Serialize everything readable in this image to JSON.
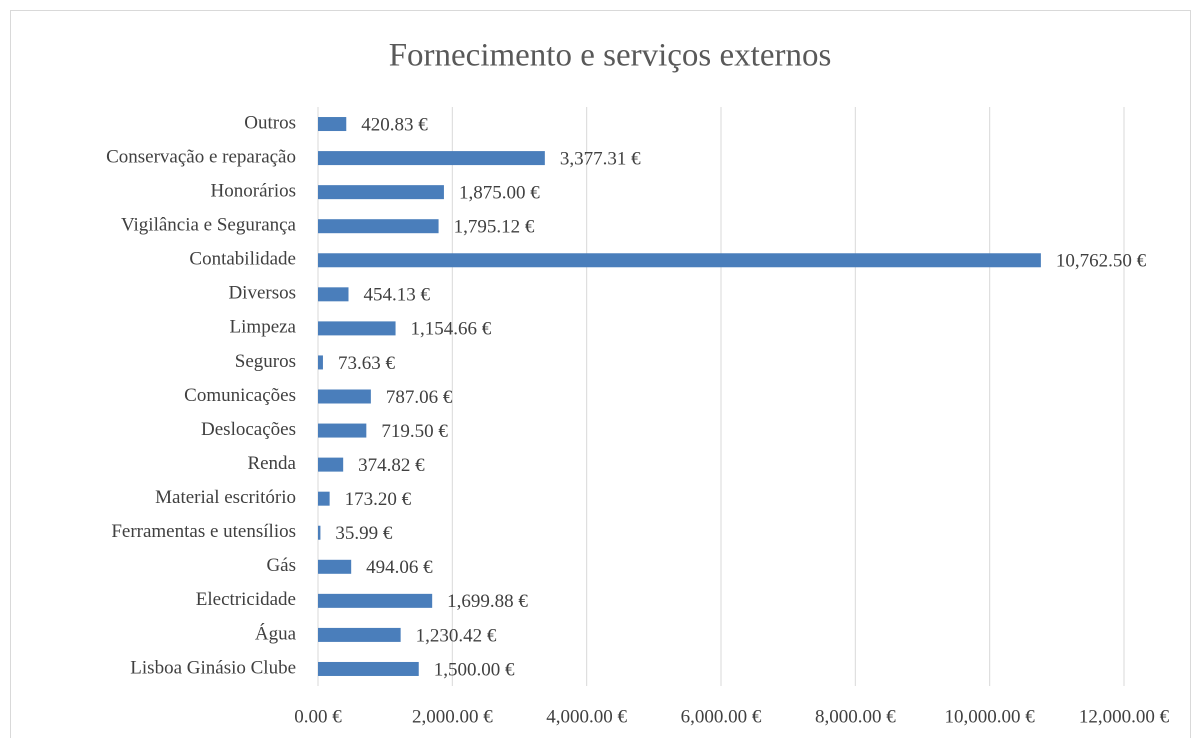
{
  "chart_data": {
    "type": "bar",
    "orientation": "horizontal",
    "title": "Fornecimento e serviços externos",
    "categories": [
      "Outros",
      "Conservação e reparação",
      "Honorários",
      "Vigilância e Segurança",
      "Contabilidade",
      "Diversos",
      "Limpeza",
      "Seguros",
      "Comunicações",
      "Deslocações",
      "Renda",
      "Material escritório",
      "Ferramentas e utensílios",
      "Gás",
      "Electricidade",
      "Água",
      "Lisboa Ginásio Clube"
    ],
    "values": [
      420.83,
      3377.31,
      1875.0,
      1795.12,
      10762.5,
      454.13,
      1154.66,
      73.63,
      787.06,
      719.5,
      374.82,
      173.2,
      35.99,
      494.06,
      1699.88,
      1230.42,
      1500.0
    ],
    "value_labels": [
      "420.83 €",
      "3,377.31 €",
      "1,875.00 €",
      "1,795.12 €",
      "10,762.50 €",
      "454.13 €",
      "1,154.66 €",
      "73.63 €",
      "787.06 €",
      "719.50 €",
      "374.82 €",
      "173.20 €",
      "35.99 €",
      "494.06 €",
      "1,699.88 €",
      "1,230.42 €",
      "1,500.00 €"
    ],
    "color": "#4a7ebb",
    "xlim": [
      0,
      12000
    ],
    "xticks": [
      {
        "value": 0,
        "label": "0.00 €"
      },
      {
        "value": 2000,
        "label": "2,000.00 €"
      },
      {
        "value": 4000,
        "label": "4,000.00 €"
      },
      {
        "value": 6000,
        "label": "6,000.00 €"
      },
      {
        "value": 8000,
        "label": "8,000.00 €"
      },
      {
        "value": 10000,
        "label": "10,000.00 €"
      },
      {
        "value": 12000,
        "label": "12,000.00 €"
      }
    ],
    "grid": true
  }
}
